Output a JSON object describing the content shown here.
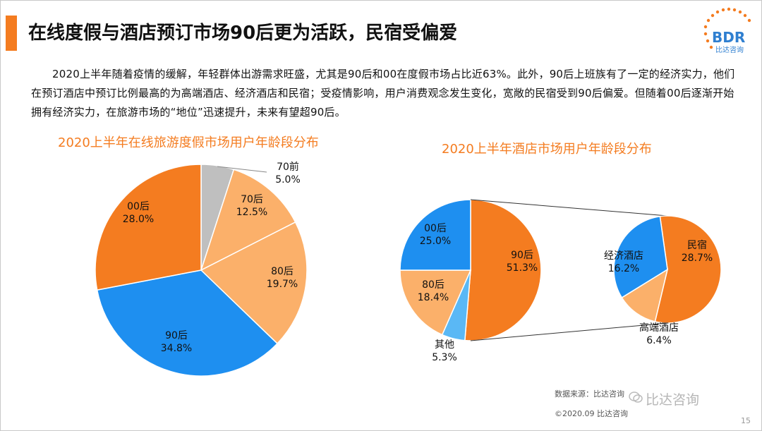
{
  "title": "在线度假与酒店预订市场90后更为活跃，民宿受偏爱",
  "logo": {
    "brand": "BDR",
    "sub": "比达咨询",
    "accent": "#f47c20",
    "blue": "#2f7fd0"
  },
  "intro": "2020上半年随着疫情的缓解，年轻群体出游需求旺盛，尤其是90后和00在度假市场占比近63%。此外，90后上班族有了一定的经济实力，他们在预订酒店中预订比例最高的为高端酒店、经济酒店和民宿；受疫情影响，用户消费观念发生变化，宽敞的民宿受到90后偏爱。但随着00后逐渐开始拥有经济实力，在旅游市场的“地位”迅速提升，未来有望超90后。",
  "chart_data": [
    {
      "type": "pie",
      "title": "2020上半年在线旅游度假市场用户年龄段分布",
      "slices": [
        {
          "label": "70前",
          "value": 5.0,
          "value_text": "5.0%",
          "color": "#bfbfbf"
        },
        {
          "label": "70后",
          "value": 12.5,
          "value_text": "12.5%",
          "color": "#fbb06a"
        },
        {
          "label": "80后",
          "value": 19.7,
          "value_text": "19.7%",
          "color": "#fbb06a"
        },
        {
          "label": "90后",
          "value": 34.8,
          "value_text": "34.8%",
          "color": "#1e8ff0"
        },
        {
          "label": "00后",
          "value": 28.0,
          "value_text": "28.0%",
          "color": "#f47c20"
        }
      ]
    },
    {
      "type": "pie",
      "title": "2020上半年酒店市场用户年龄段分布",
      "slices": [
        {
          "label": "90后",
          "value": 51.3,
          "value_text": "51.3%",
          "color": "#f47c20"
        },
        {
          "label": "其他",
          "value": 5.3,
          "value_text": "5.3%",
          "color": "#5ab8f5"
        },
        {
          "label": "80后",
          "value": 18.4,
          "value_text": "18.4%",
          "color": "#fbb06a"
        },
        {
          "label": "00后",
          "value": 25.0,
          "value_text": "25.0%",
          "color": "#1e8ff0"
        }
      ],
      "breakdown_of": "90后",
      "breakdown": [
        {
          "label": "民宿",
          "value": 28.7,
          "value_text": "28.7%",
          "color": "#f47c20"
        },
        {
          "label": "高端酒店",
          "value": 6.4,
          "value_text": "6.4%",
          "color": "#fbb06a"
        },
        {
          "label": "经济酒店",
          "value": 16.2,
          "value_text": "16.2%",
          "color": "#1e8ff0"
        }
      ]
    }
  ],
  "footer": {
    "source": "数据来源：比达咨询",
    "copyright": "©2020.09 比达咨询",
    "watermark": "比达咨询",
    "page": "15"
  }
}
